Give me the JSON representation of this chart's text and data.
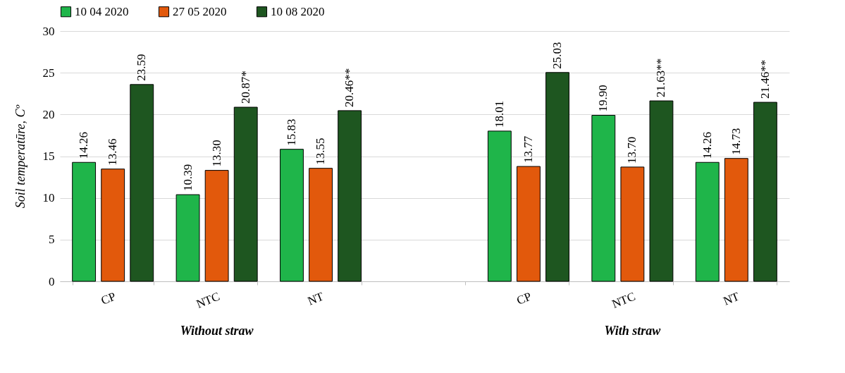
{
  "chart_data": {
    "type": "bar",
    "ylabel": "Soil temperatūre, Cº",
    "categories": [
      "CP",
      "NTC",
      "NT",
      null,
      "CP",
      "NTC",
      "NT"
    ],
    "series": [
      {
        "name": "10 04 2020",
        "color": "#1fb54a",
        "values": [
          14.26,
          10.39,
          15.83,
          null,
          18.01,
          19.9,
          14.26
        ],
        "value_labels": [
          "14.26",
          "10.39",
          "15.83",
          null,
          "18.01",
          "19.90",
          "14.26"
        ]
      },
      {
        "name": "27 05 2020",
        "color": "#e2590c",
        "values": [
          13.46,
          13.3,
          13.55,
          null,
          13.77,
          13.7,
          14.73
        ],
        "value_labels": [
          "13.46",
          "13.30",
          "13.55",
          null,
          "13.77",
          "13.70",
          "14.73"
        ]
      },
      {
        "name": "10  08 2020",
        "color": "#1e5620",
        "values": [
          23.59,
          20.87,
          20.46,
          null,
          25.03,
          21.63,
          21.46
        ],
        "value_labels": [
          "23.59",
          "20.87*",
          "20.46**",
          null,
          "25.03",
          "21.63**",
          "21.46**"
        ]
      }
    ],
    "annotations": [
      "Without straw",
      "With straw"
    ],
    "ylim": [
      0,
      30
    ],
    "yticks": [
      0,
      5,
      10,
      15,
      20,
      25,
      30
    ],
    "grid": "y",
    "legend": "top"
  }
}
